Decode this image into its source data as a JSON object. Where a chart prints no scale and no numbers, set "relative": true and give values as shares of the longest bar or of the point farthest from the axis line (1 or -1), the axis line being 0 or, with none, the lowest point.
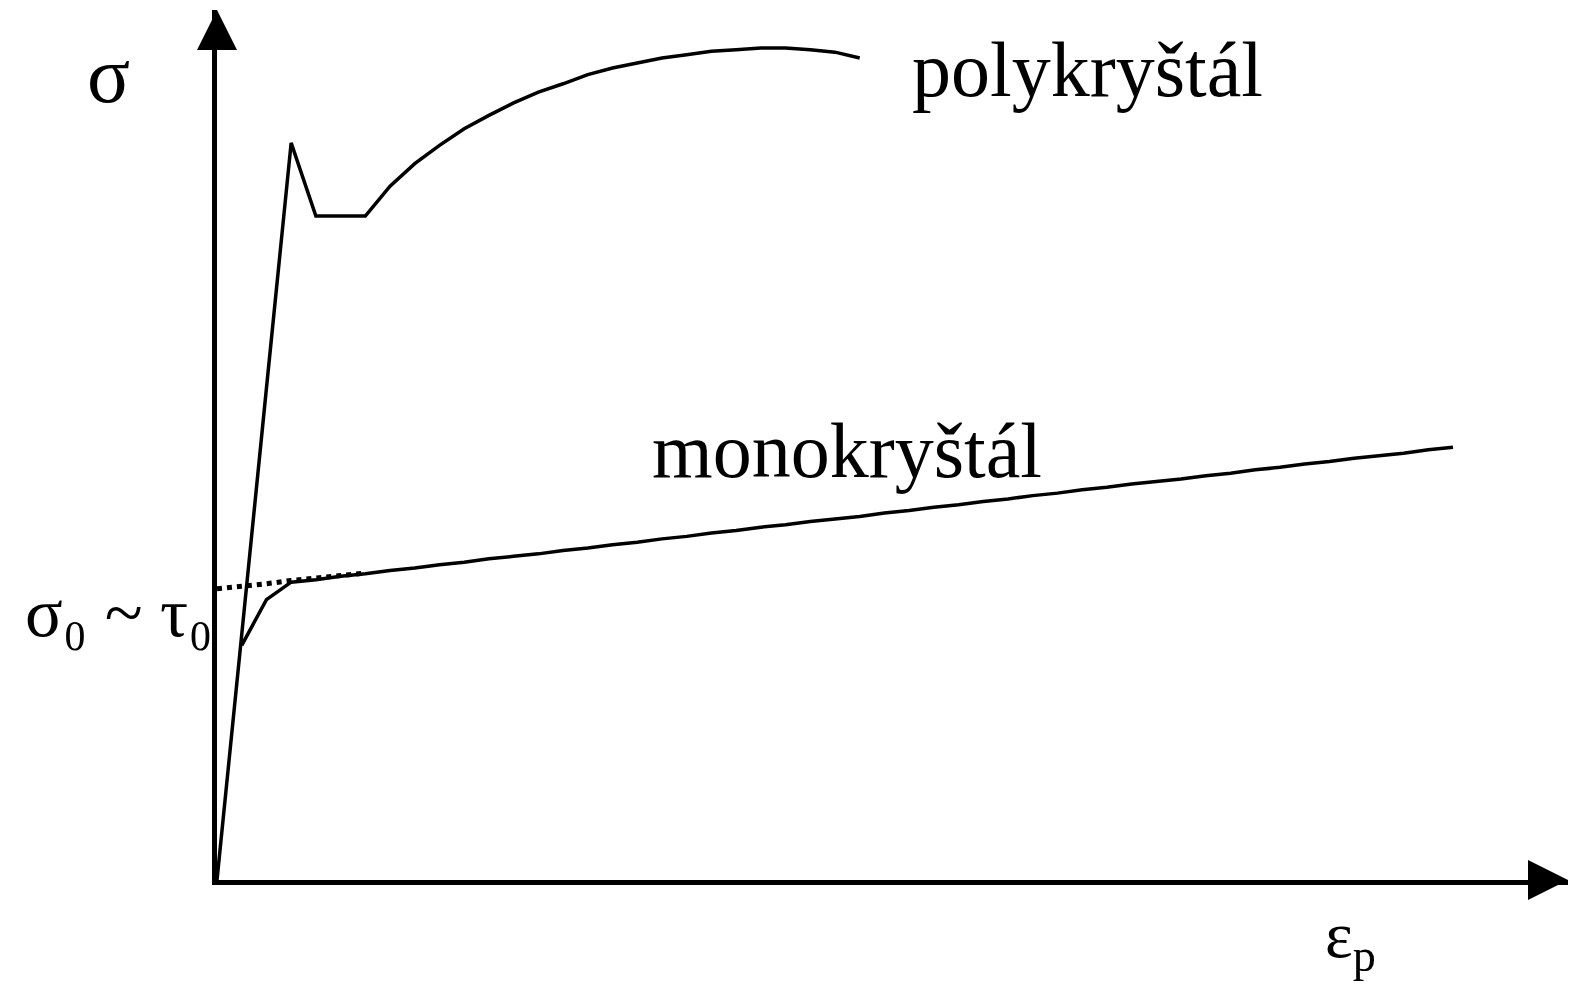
{
  "chart_data": {
    "type": "line",
    "relative": true,
    "xlabel": "ε$_{p}$",
    "ylabel": "σ",
    "annotations": [
      "σ₀ ~ τ₀"
    ],
    "categories": [
      null,
      null,
      null,
      null,
      null,
      null,
      null,
      null,
      null,
      null,
      null,
      null,
      null,
      null,
      null,
      null,
      null,
      null,
      null,
      null,
      null,
      null,
      null,
      null,
      null,
      null,
      null,
      null,
      null,
      null,
      null,
      null,
      null,
      null,
      null,
      null,
      null,
      null,
      null,
      null,
      null,
      null,
      null,
      null,
      null,
      null,
      null,
      null,
      null,
      null,
      null
    ],
    "series": [
      {
        "name": "polykryštál",
        "color": "#000000",
        "line_style": "solid",
        "values": [
          0,
          0.295,
          0.591,
          0.886,
          0.798,
          0.798,
          0.798,
          0.834,
          0.861,
          0.883,
          0.903,
          0.919,
          0.934,
          0.947,
          0.957,
          0.968,
          0.976,
          0.982,
          0.988,
          0.992,
          0.996,
          0.998,
          1.0,
          1.0,
          0.998,
          0.995,
          0.988,
          null,
          null,
          null,
          null,
          null,
          null,
          null,
          null,
          null,
          null,
          null,
          null,
          null,
          null,
          null,
          null,
          null,
          null,
          null,
          null,
          null,
          null,
          null,
          null
        ]
      },
      {
        "name": "monokryštál",
        "color": "#000000",
        "line_style": "solid",
        "values": [
          null,
          0.282,
          0.337,
          0.358,
          0.361,
          0.365,
          0.368,
          0.372,
          0.375,
          0.379,
          0.382,
          0.386,
          0.389,
          0.392,
          0.396,
          0.399,
          0.403,
          0.406,
          0.41,
          0.413,
          0.417,
          0.42,
          0.424,
          0.427,
          0.431,
          0.434,
          0.437,
          0.441,
          0.444,
          0.448,
          0.451,
          0.455,
          0.458,
          0.462,
          0.465,
          0.469,
          0.472,
          0.476,
          0.479,
          0.482,
          0.486,
          0.489,
          0.493,
          0.496,
          0.5,
          0.503,
          0.507,
          0.51,
          0.513,
          0.517,
          0.52
        ]
      },
      {
        "color": "#000000",
        "line_style": "dotted",
        "values": [
          0.35,
          0.353,
          0.356,
          0.36,
          0.363,
          0.366,
          0.369,
          null,
          null,
          null,
          null,
          null,
          null,
          null,
          null,
          null,
          null,
          null,
          null,
          null,
          null,
          null,
          null,
          null,
          null,
          null,
          null,
          null,
          null,
          null,
          null,
          null,
          null,
          null,
          null,
          null,
          null,
          null,
          null,
          null,
          null,
          null,
          null,
          null,
          null,
          null,
          null,
          null,
          null,
          null,
          null
        ]
      }
    ]
  }
}
